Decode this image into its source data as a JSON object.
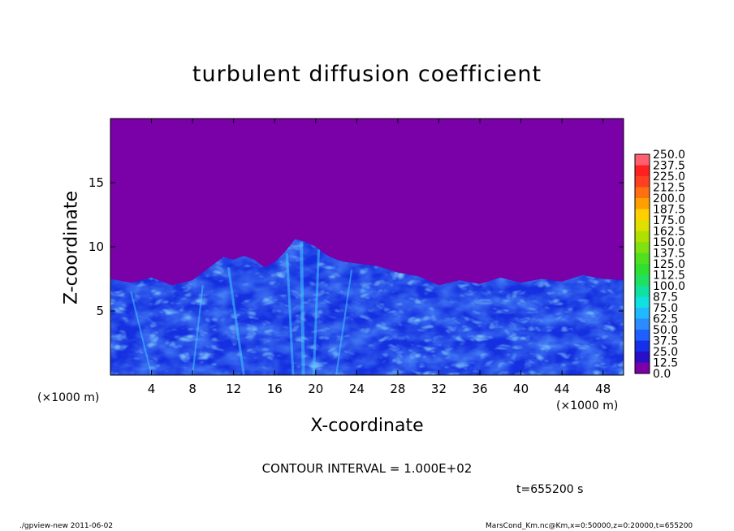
{
  "chart_data": {
    "type": "heatmap",
    "title": "turbulent diffusion coefficient",
    "xlabel": "X-coordinate",
    "ylabel": "Z-coordinate",
    "x_unit": "(×1000 m)",
    "xlim": [
      0,
      50
    ],
    "ylim": [
      0,
      20
    ],
    "x_ticks": [
      "4",
      "8",
      "12",
      "16",
      "20",
      "24",
      "28",
      "32",
      "36",
      "40",
      "44",
      "48"
    ],
    "y_ticks": [
      "5",
      "10",
      "15"
    ],
    "colorbar": {
      "levels": [
        "0.0",
        "12.5",
        "25.0",
        "37.5",
        "50.0",
        "62.5",
        "75.0",
        "87.5",
        "100.0",
        "112.5",
        "125.0",
        "137.5",
        "150.0",
        "162.5",
        "175.0",
        "187.5",
        "200.0",
        "212.5",
        "225.0",
        "237.5",
        "250.0"
      ],
      "colors": [
        "#7a00a8",
        "#2a0fc8",
        "#1530e8",
        "#1e60ff",
        "#2a8cff",
        "#20b8ff",
        "#10e0e0",
        "#10e0a0",
        "#20e060",
        "#30e030",
        "#50e020",
        "#80e010",
        "#b0e000",
        "#e0e000",
        "#ffd000",
        "#ffa000",
        "#ff7010",
        "#ff4020",
        "#ff2020",
        "#ff6070"
      ]
    },
    "contour_interval": "CONTOUR INTERVAL = 1.000E+02",
    "time": "t=655200 s"
  },
  "footer": {
    "left": "./gpview-new   2011-06-02",
    "right": "MarsCond_Km.nc@Km,x=0:50000,z=0:20000,t=655200"
  }
}
